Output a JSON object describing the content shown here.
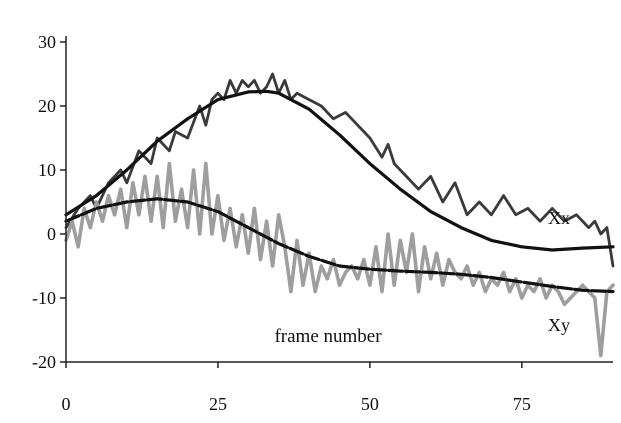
{
  "chart_data": {
    "type": "line",
    "title": "",
    "xlabel": "frame number",
    "ylabel": "",
    "xlim": [
      0,
      90
    ],
    "ylim": [
      -20,
      30
    ],
    "x_ticks": [
      0,
      25,
      50,
      75
    ],
    "y_ticks": [
      30,
      20,
      10,
      0,
      -10,
      -20
    ],
    "x_tick_labels": [
      "0",
      "25",
      "50",
      "75"
    ],
    "y_tick_labels": [
      "30",
      "20",
      "10",
      "0",
      "-10",
      "-20"
    ],
    "grid": false,
    "legend": "inline labels at right",
    "series": [
      {
        "name": "Xx",
        "style": "noisy",
        "color": "#3a3a3a",
        "x": [
          0,
          2,
          4,
          5,
          7,
          9,
          10,
          12,
          14,
          15,
          17,
          18,
          20,
          22,
          23,
          24,
          25,
          26,
          27,
          28,
          29,
          30,
          31,
          32,
          33,
          34,
          35,
          36,
          37,
          38,
          40,
          42,
          44,
          46,
          48,
          50,
          52,
          53,
          54,
          56,
          58,
          60,
          62,
          64,
          66,
          68,
          70,
          72,
          74,
          76,
          78,
          80,
          82,
          84,
          86,
          87,
          88,
          89,
          90
        ],
        "y": [
          1,
          4,
          6,
          4,
          8,
          10,
          8,
          13,
          11,
          15,
          13,
          16,
          15,
          20,
          17,
          21,
          22,
          21,
          24,
          22,
          24,
          23,
          24,
          22,
          23,
          25,
          22,
          24,
          21,
          22,
          21,
          20,
          18,
          19,
          17,
          15,
          12,
          14,
          11,
          9,
          7,
          9,
          5,
          8,
          3,
          5,
          3,
          6,
          3,
          4,
          2,
          4,
          2,
          3,
          1,
          2,
          0,
          1,
          -5
        ]
      },
      {
        "name": "",
        "style": "smooth-fit",
        "color": "#111111",
        "x": [
          0,
          5,
          10,
          15,
          20,
          25,
          30,
          33,
          35,
          40,
          45,
          50,
          55,
          60,
          65,
          70,
          75,
          80,
          85,
          90
        ],
        "y": [
          3,
          6,
          10,
          14.5,
          18,
          21,
          22.2,
          22.3,
          22,
          19.5,
          15.5,
          11,
          7,
          3.5,
          1,
          -1,
          -2,
          -2.5,
          -2.2,
          -2
        ]
      },
      {
        "name": "Xy",
        "style": "noisy",
        "color": "#9e9e9e",
        "x": [
          0,
          1,
          2,
          3,
          4,
          5,
          6,
          7,
          8,
          9,
          10,
          11,
          12,
          13,
          14,
          15,
          16,
          17,
          18,
          19,
          20,
          21,
          22,
          23,
          24,
          25,
          26,
          27,
          28,
          29,
          30,
          31,
          32,
          33,
          34,
          35,
          36,
          37,
          38,
          39,
          40,
          41,
          42,
          43,
          44,
          45,
          46,
          47,
          48,
          49,
          50,
          51,
          52,
          53,
          54,
          55,
          56,
          57,
          58,
          59,
          60,
          61,
          62,
          63,
          64,
          65,
          66,
          67,
          68,
          69,
          70,
          71,
          72,
          73,
          74,
          75,
          76,
          77,
          78,
          79,
          80,
          81,
          82,
          83,
          84,
          85,
          86,
          87,
          88,
          89,
          90
        ],
        "y": [
          -1,
          2,
          -2,
          4,
          1,
          5,
          2,
          6,
          3,
          7,
          1,
          8,
          3,
          9,
          2,
          9,
          1,
          11,
          2,
          7,
          1,
          10,
          0,
          11,
          0,
          6,
          -1,
          4,
          -2,
          3,
          -3,
          4,
          -4,
          2,
          -5,
          3,
          -2,
          -9,
          -1,
          -8,
          -3,
          -9,
          -5,
          -7,
          -4,
          -8,
          -6,
          -5,
          -7,
          -4,
          -8,
          -2,
          -9,
          0,
          -8,
          -1,
          -6,
          0,
          -9,
          -2,
          -7,
          -3,
          -8,
          -4,
          -6,
          -7,
          -5,
          -8,
          -6,
          -9,
          -7,
          -8,
          -6,
          -9,
          -7,
          -10,
          -8,
          -9,
          -7,
          -10,
          -8,
          -9,
          -11,
          -10,
          -9,
          -8,
          -9,
          -10,
          -19,
          -9,
          -8
        ]
      },
      {
        "name": "",
        "style": "smooth-fit",
        "color": "#111111",
        "x": [
          0,
          5,
          10,
          15,
          20,
          25,
          30,
          35,
          40,
          45,
          50,
          55,
          60,
          65,
          70,
          75,
          80,
          85,
          90
        ],
        "y": [
          2,
          4,
          5,
          5.5,
          5,
          3.5,
          1,
          -1.5,
          -3.5,
          -5,
          -5.5,
          -5.8,
          -6,
          -6.3,
          -6.8,
          -7.5,
          -8.2,
          -8.8,
          -9
        ]
      }
    ]
  }
}
